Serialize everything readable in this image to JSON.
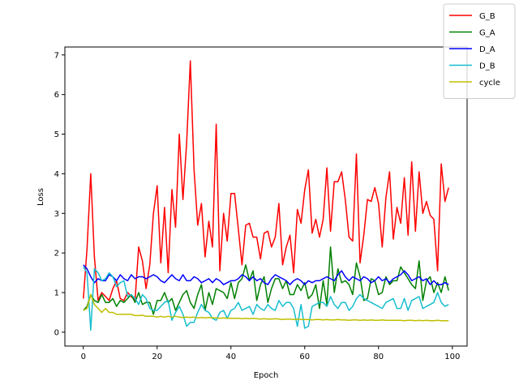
{
  "chart_data": {
    "type": "line",
    "title": "",
    "xlabel": "Epoch",
    "ylabel": "Loss",
    "xlim": [
      -5,
      104
    ],
    "ylim": [
      -0.35,
      7.2
    ],
    "xticks": [
      0,
      20,
      40,
      60,
      80,
      100
    ],
    "yticks": [
      0,
      1,
      2,
      3,
      4,
      5,
      6,
      7
    ],
    "xtick_labels": [
      "0",
      "20",
      "40",
      "60",
      "80",
      "100"
    ],
    "ytick_labels": [
      "0",
      "1",
      "2",
      "3",
      "4",
      "5",
      "6",
      "7"
    ],
    "legend": {
      "placement": "upper-right (outside axes)"
    },
    "grid": false,
    "x": [
      0,
      1,
      2,
      3,
      4,
      5,
      6,
      7,
      8,
      9,
      10,
      11,
      12,
      13,
      14,
      15,
      16,
      17,
      18,
      19,
      20,
      21,
      22,
      23,
      24,
      25,
      26,
      27,
      28,
      29,
      30,
      31,
      32,
      33,
      34,
      35,
      36,
      37,
      38,
      39,
      40,
      41,
      42,
      43,
      44,
      45,
      46,
      47,
      48,
      49,
      50,
      51,
      52,
      53,
      54,
      55,
      56,
      57,
      58,
      59,
      60,
      61,
      62,
      63,
      64,
      65,
      66,
      67,
      68,
      69,
      70,
      71,
      72,
      73,
      74,
      75,
      76,
      77,
      78,
      79,
      80,
      81,
      82,
      83,
      84,
      85,
      86,
      87,
      88,
      89,
      90,
      91,
      92,
      93,
      94,
      95,
      96,
      97,
      98,
      99
    ],
    "series": [
      {
        "name": "G_B",
        "color": "#ff0000",
        "values": [
          0.85,
          2.1,
          4.0,
          1.9,
          0.8,
          1.0,
          0.9,
          0.8,
          1.1,
          1.3,
          0.85,
          0.8,
          1.0,
          0.9,
          0.8,
          2.15,
          1.8,
          1.1,
          1.7,
          3.0,
          3.7,
          1.75,
          3.15,
          1.5,
          3.6,
          2.65,
          5.0,
          3.35,
          4.8,
          6.85,
          4.1,
          2.7,
          3.25,
          1.9,
          2.8,
          2.15,
          5.25,
          1.55,
          3.0,
          2.3,
          3.5,
          3.5,
          2.6,
          1.7,
          2.7,
          2.75,
          2.4,
          2.4,
          1.85,
          2.5,
          2.55,
          2.15,
          2.4,
          3.25,
          1.7,
          2.15,
          2.45,
          1.5,
          3.1,
          2.75,
          3.6,
          4.1,
          2.5,
          2.85,
          2.4,
          2.85,
          4.15,
          2.55,
          3.8,
          3.8,
          4.05,
          3.35,
          2.4,
          2.3,
          4.5,
          1.75,
          2.45,
          3.35,
          3.3,
          3.65,
          3.25,
          2.15,
          3.4,
          4.05,
          2.35,
          3.15,
          2.75,
          3.9,
          2.45,
          4.3,
          2.55,
          4.05,
          3.0,
          3.3,
          2.95,
          2.85,
          1.55,
          4.25,
          3.3,
          3.65
        ]
      },
      {
        "name": "G_A",
        "color": "#008000",
        "values": [
          0.55,
          0.65,
          0.95,
          0.8,
          0.75,
          0.95,
          0.75,
          0.75,
          0.85,
          0.65,
          0.8,
          0.75,
          0.85,
          0.95,
          0.75,
          1.0,
          0.7,
          0.75,
          0.75,
          0.45,
          0.8,
          0.8,
          1.0,
          0.75,
          0.85,
          0.55,
          0.75,
          0.95,
          1.05,
          0.75,
          0.6,
          0.95,
          1.2,
          0.55,
          1.0,
          0.7,
          1.1,
          1.05,
          1.0,
          0.85,
          1.25,
          0.85,
          1.25,
          1.35,
          1.7,
          1.3,
          1.55,
          0.8,
          1.2,
          1.4,
          0.75,
          1.1,
          1.35,
          1.35,
          1.1,
          1.3,
          0.95,
          0.95,
          1.2,
          1.05,
          1.25,
          0.85,
          0.95,
          1.2,
          0.6,
          1.3,
          0.7,
          2.15,
          1.0,
          1.6,
          1.25,
          1.3,
          1.2,
          0.95,
          1.75,
          1.4,
          0.8,
          0.85,
          1.35,
          1.3,
          0.95,
          1.0,
          1.4,
          1.2,
          1.3,
          1.3,
          1.65,
          1.5,
          1.35,
          1.2,
          1.1,
          1.8,
          0.8,
          1.3,
          1.4,
          1.0,
          1.25,
          1.0,
          1.4,
          1.05
        ]
      },
      {
        "name": "D_A",
        "color": "#0000ff",
        "values": [
          1.7,
          1.6,
          1.4,
          1.25,
          1.35,
          1.3,
          1.3,
          1.45,
          1.4,
          1.3,
          1.45,
          1.35,
          1.3,
          1.45,
          1.35,
          1.4,
          1.4,
          1.35,
          1.4,
          1.45,
          1.4,
          1.3,
          1.25,
          1.35,
          1.45,
          1.35,
          1.3,
          1.45,
          1.3,
          1.3,
          1.4,
          1.35,
          1.25,
          1.3,
          1.35,
          1.25,
          1.35,
          1.3,
          1.2,
          1.25,
          1.3,
          1.3,
          1.35,
          1.45,
          1.4,
          1.3,
          1.4,
          1.3,
          1.35,
          1.25,
          1.2,
          1.35,
          1.45,
          1.4,
          1.35,
          1.3,
          1.2,
          1.3,
          1.35,
          1.3,
          1.2,
          1.3,
          1.25,
          1.3,
          1.3,
          1.35,
          1.4,
          1.35,
          1.3,
          1.45,
          1.55,
          1.4,
          1.3,
          1.4,
          1.35,
          1.3,
          1.4,
          1.35,
          1.25,
          1.3,
          1.4,
          1.3,
          1.35,
          1.25,
          1.35,
          1.4,
          1.45,
          1.55,
          1.45,
          1.3,
          1.35,
          1.4,
          1.3,
          1.35,
          1.2,
          1.3,
          1.2,
          1.2,
          1.25,
          1.2
        ]
      },
      {
        "name": "D_B",
        "color": "#17becf",
        "values": [
          1.65,
          1.5,
          0.05,
          1.6,
          1.5,
          1.3,
          1.35,
          1.5,
          1.4,
          1.15,
          1.25,
          1.3,
          0.9,
          0.95,
          0.85,
          0.7,
          0.95,
          0.85,
          0.6,
          0.55,
          0.55,
          0.65,
          0.75,
          0.8,
          0.3,
          0.5,
          0.65,
          0.45,
          0.15,
          0.25,
          0.25,
          0.5,
          0.7,
          0.55,
          0.5,
          0.35,
          0.3,
          0.5,
          0.55,
          0.35,
          0.55,
          0.6,
          0.75,
          0.55,
          0.6,
          0.65,
          0.45,
          0.7,
          0.6,
          0.55,
          0.7,
          0.6,
          0.55,
          0.8,
          0.65,
          0.75,
          0.75,
          0.6,
          0.15,
          0.7,
          0.1,
          0.15,
          0.65,
          0.7,
          0.75,
          0.75,
          0.65,
          0.9,
          0.7,
          0.6,
          0.75,
          0.75,
          0.55,
          0.65,
          0.85,
          0.95,
          0.85,
          0.8,
          0.75,
          0.7,
          0.65,
          0.6,
          0.75,
          0.8,
          0.85,
          0.6,
          0.6,
          0.85,
          0.55,
          0.8,
          0.85,
          0.9,
          0.6,
          0.65,
          0.7,
          0.75,
          1.0,
          0.75,
          0.65,
          0.7
        ]
      },
      {
        "name": "cycle",
        "color": "#bfbf00",
        "values": [
          0.55,
          0.6,
          0.95,
          0.7,
          0.6,
          0.5,
          0.6,
          0.5,
          0.5,
          0.45,
          0.45,
          0.45,
          0.45,
          0.45,
          0.42,
          0.42,
          0.43,
          0.4,
          0.4,
          0.4,
          0.38,
          0.4,
          0.38,
          0.4,
          0.38,
          0.4,
          0.38,
          0.37,
          0.38,
          0.37,
          0.38,
          0.36,
          0.37,
          0.36,
          0.37,
          0.36,
          0.36,
          0.35,
          0.36,
          0.35,
          0.35,
          0.35,
          0.35,
          0.34,
          0.35,
          0.34,
          0.35,
          0.34,
          0.33,
          0.34,
          0.33,
          0.33,
          0.34,
          0.33,
          0.32,
          0.33,
          0.33,
          0.32,
          0.33,
          0.32,
          0.32,
          0.32,
          0.31,
          0.32,
          0.32,
          0.31,
          0.32,
          0.31,
          0.31,
          0.32,
          0.31,
          0.31,
          0.3,
          0.31,
          0.31,
          0.3,
          0.31,
          0.3,
          0.31,
          0.3,
          0.3,
          0.31,
          0.3,
          0.3,
          0.3,
          0.3,
          0.3,
          0.29,
          0.3,
          0.3,
          0.29,
          0.3,
          0.29,
          0.3,
          0.29,
          0.29,
          0.3,
          0.29,
          0.29,
          0.29
        ]
      }
    ]
  }
}
